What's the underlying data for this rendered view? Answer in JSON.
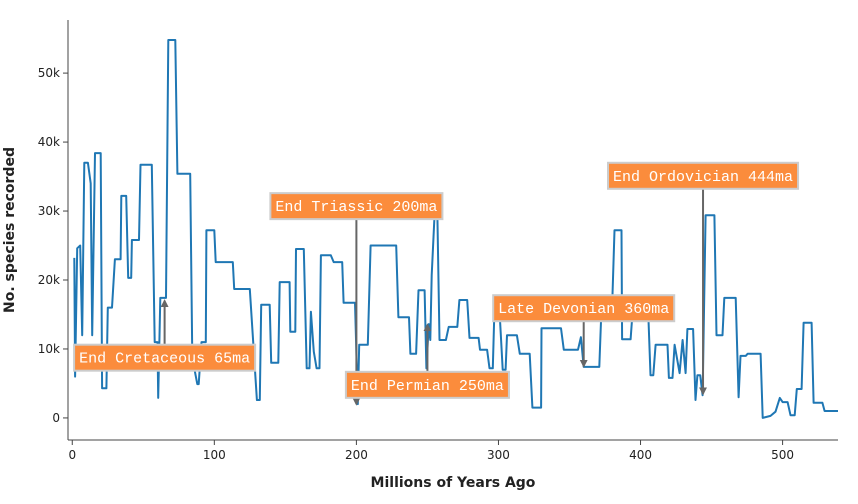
{
  "chart_data": {
    "type": "line",
    "xlabel": "Millions of Years Ago",
    "ylabel": "No. species recorded",
    "color": "#1f77b4",
    "xlim": [
      -3,
      539
    ],
    "ylim": [
      -3200,
      57700
    ],
    "xticks": [
      0,
      100,
      200,
      300,
      400,
      500
    ],
    "yticks": [
      0,
      {
        "value": 10000,
        "label": "10k"
      },
      {
        "value": 20000,
        "label": "20k"
      },
      {
        "value": 30000,
        "label": "30k"
      },
      {
        "value": 40000,
        "label": "40k"
      },
      {
        "value": 50000,
        "label": "50k"
      }
    ],
    "grid": false,
    "x": [
      1.4,
      2,
      3.5,
      5.6,
      7,
      8.5,
      11,
      13,
      14,
      16,
      20,
      21,
      24,
      25,
      28,
      30,
      34,
      34.5,
      38,
      39.4,
      41.5,
      42,
      47,
      48,
      56,
      58,
      60,
      60.5,
      62,
      66,
      67.6,
      72.5,
      74,
      83,
      84.5,
      88,
      89,
      91,
      94,
      94.4,
      100,
      101,
      113,
      114,
      125,
      130,
      132,
      133,
      139,
      140,
      145,
      146,
      153,
      153.5,
      157,
      157.5,
      163,
      165,
      167,
      168,
      170,
      172,
      174,
      175,
      182,
      184,
      190,
      191,
      199,
      201,
      202,
      208,
      210,
      228,
      229.6,
      237,
      238,
      242,
      243.7,
      248,
      249.3,
      251,
      252,
      253,
      255,
      257,
      258.5,
      263,
      265,
      271,
      272.5,
      278,
      279.6,
      286,
      287,
      292,
      293.7,
      296,
      297,
      301,
      303,
      305,
      306,
      313,
      315,
      322,
      323.9,
      330,
      330.3,
      344,
      346,
      356,
      358,
      360,
      371,
      372.5,
      380,
      381.7,
      386.6,
      387,
      393,
      394,
      405.6,
      407,
      409,
      410.6,
      419,
      420,
      422.5,
      424,
      427.5,
      429.6,
      431.7,
      433,
      437,
      438.7,
      440,
      442,
      443.7,
      445.8,
      452,
      453.5,
      457.7,
      459,
      467,
      469,
      470.4,
      474,
      475.4,
      484.5,
      486,
      491.5,
      495,
      498,
      500,
      503.5,
      505.6,
      508.5,
      510,
      513.4,
      514.8,
      520.4,
      521.8,
      528,
      529.6,
      539
    ],
    "values": [
      23200,
      6000,
      24600,
      25000,
      12000,
      37000,
      37000,
      34000,
      12000,
      38400,
      38400,
      4300,
      4300,
      16000,
      16000,
      23000,
      23000,
      32200,
      32200,
      20300,
      20300,
      25800,
      25800,
      36700,
      36700,
      11000,
      11000,
      2900,
      17400,
      17400,
      54800,
      54800,
      35400,
      35400,
      8700,
      4900,
      4900,
      11000,
      11000,
      27200,
      27200,
      22600,
      22600,
      18700,
      18700,
      2600,
      2600,
      16400,
      16400,
      8000,
      8000,
      19700,
      19700,
      12500,
      12500,
      24500,
      24500,
      7200,
      7200,
      15400,
      9600,
      7200,
      7200,
      23600,
      23600,
      22600,
      22600,
      16700,
      16700,
      2000,
      10600,
      10600,
      25000,
      25000,
      14600,
      14600,
      9300,
      9300,
      18500,
      18500,
      7200,
      13600,
      11300,
      20700,
      29300,
      29300,
      11300,
      11300,
      13200,
      13200,
      17100,
      17100,
      11600,
      11600,
      9900,
      9900,
      7200,
      7200,
      14500,
      14500,
      7000,
      7000,
      12000,
      12000,
      9300,
      9300,
      1500,
      1500,
      13000,
      13000,
      9900,
      9900,
      11700,
      7400,
      7400,
      16000,
      16000,
      27200,
      27200,
      11400,
      11400,
      14200,
      14200,
      6200,
      6200,
      10600,
      10600,
      5800,
      5800,
      10600,
      6500,
      11300,
      6500,
      12900,
      12900,
      2600,
      6200,
      6200,
      3300,
      29400,
      29400,
      12000,
      12000,
      17400,
      17400,
      3000,
      9000,
      9000,
      9300,
      9300,
      0,
      300,
      900,
      2900,
      2300,
      2300,
      400,
      400,
      4200,
      4200,
      13800,
      13800,
      2200,
      2200,
      1000,
      1000
    ],
    "annotations": [
      {
        "text": "End Cretaceous 65ma",
        "x": 65,
        "y": 17000
      },
      {
        "text": "End Triassic 200ma",
        "x": 200,
        "y": 2000
      },
      {
        "text": "End Permian 250ma",
        "x": 250,
        "y": 13500
      },
      {
        "text": "Late Devonian 360ma",
        "x": 360,
        "y": 7500
      },
      {
        "text": "End Ordovician 444ma",
        "x": 444,
        "y": 3500
      }
    ]
  }
}
